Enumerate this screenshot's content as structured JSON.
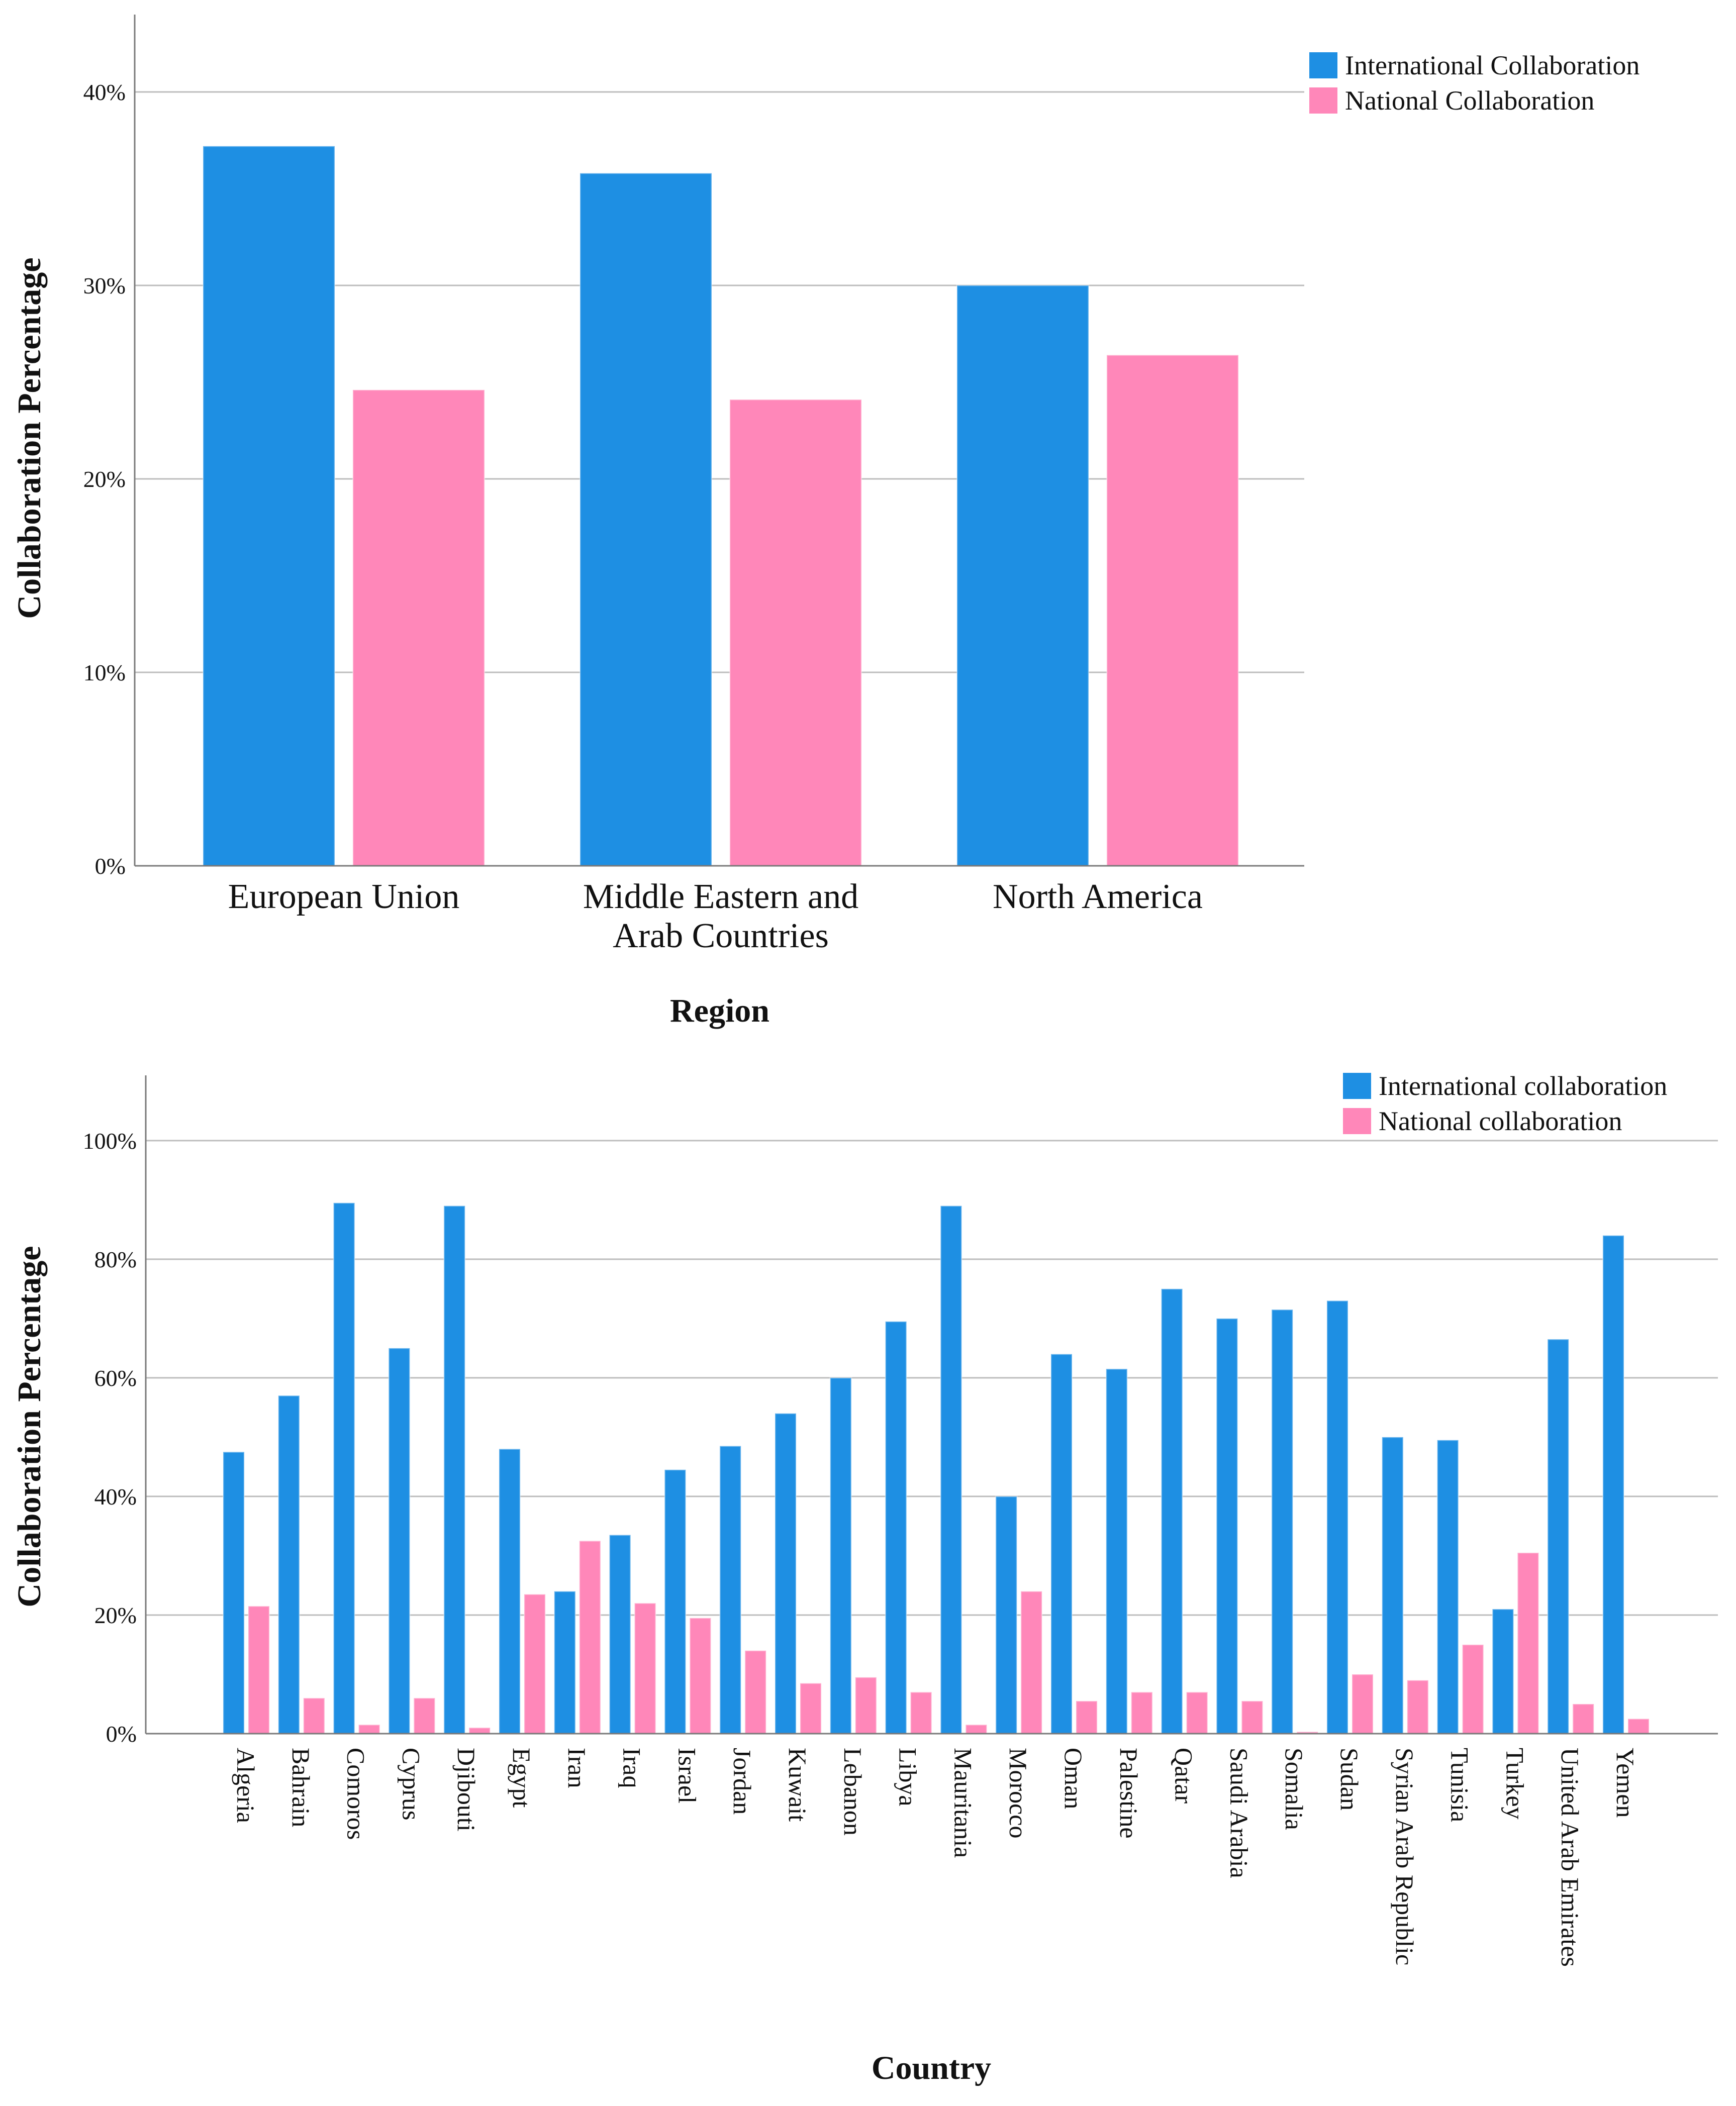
{
  "colors": {
    "international": "#1E8FE3",
    "national": "#FF87B9",
    "grid": "#bdbdbd",
    "axis": "#7a7a7a"
  },
  "chart_data": [
    {
      "type": "bar",
      "title": "",
      "xlabel": "Region",
      "ylabel": "Collaboration Percentage",
      "ylim": [
        0,
        44
      ],
      "yticks": [
        "0%",
        "10%",
        "20%",
        "30%",
        "40%"
      ],
      "categories": [
        [
          "European Union"
        ],
        [
          "Middle Eastern and",
          "Arab Countries"
        ],
        [
          "North America"
        ]
      ],
      "legend_position": "top-right",
      "series": [
        {
          "name": "International Collaboration",
          "values": [
            37.2,
            35.8,
            30.0
          ]
        },
        {
          "name": "National Collaboration",
          "values": [
            24.6,
            24.1,
            26.4
          ]
        }
      ]
    },
    {
      "type": "bar",
      "title": "",
      "xlabel": "Country",
      "ylabel": "Collaboration Percentage",
      "ylim": [
        0,
        111
      ],
      "yticks": [
        "0%",
        "20%",
        "40%",
        "60%",
        "80%",
        "100%"
      ],
      "categories": [
        "Algeria",
        "Bahrain",
        "Comoros",
        "Cyprus",
        "Djibouti",
        "Egypt",
        "Iran",
        "Iraq",
        "Israel",
        "Jordan",
        "Kuwait",
        "Lebanon",
        "Libya",
        "Mauritania",
        "Morocco",
        "Oman",
        "Palestine",
        "Qatar",
        "Saudi Arabia",
        "Somalia",
        "Sudan",
        "Syrian Arab Republic",
        "Tunisia",
        "Turkey",
        "United Arab Emirates",
        "Yemen"
      ],
      "legend_position": "top-right",
      "series": [
        {
          "name": "International collaboration",
          "values": [
            47.5,
            57.0,
            89.5,
            65.0,
            89.0,
            48.0,
            24.0,
            33.5,
            44.5,
            48.5,
            54.0,
            60.0,
            69.5,
            89.0,
            40.0,
            64.0,
            61.5,
            75.0,
            70.0,
            71.5,
            73.0,
            50.0,
            49.5,
            21.0,
            66.5,
            84.0
          ]
        },
        {
          "name": "National collaboration",
          "values": [
            21.5,
            6.0,
            1.5,
            6.0,
            1.0,
            23.5,
            32.5,
            22.0,
            19.5,
            14.0,
            8.5,
            9.5,
            7.0,
            1.5,
            24.0,
            5.5,
            7.0,
            7.0,
            5.5,
            0.3,
            10.0,
            9.0,
            15.0,
            30.5,
            5.0,
            2.5
          ]
        }
      ]
    }
  ]
}
